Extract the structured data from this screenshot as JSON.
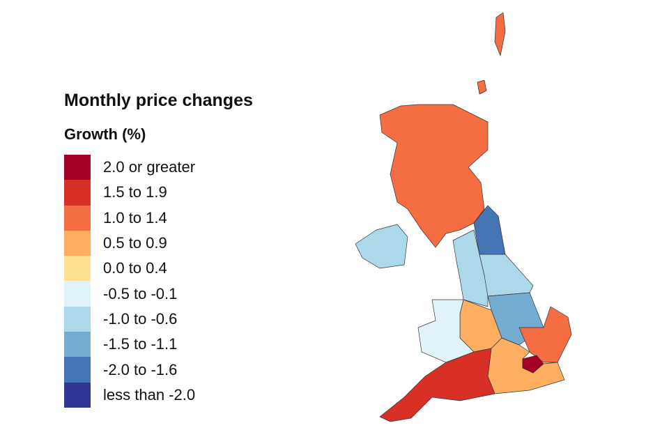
{
  "title": "Monthly price changes",
  "subtitle": "Growth (%)",
  "legend": [
    {
      "label": "2.0 or greater",
      "color": "#a50026"
    },
    {
      "label": "1.5 to 1.9",
      "color": "#d73027"
    },
    {
      "label": "1.0 to 1.4",
      "color": "#f46d43"
    },
    {
      "label": "0.5 to 0.9",
      "color": "#fdae61"
    },
    {
      "label": "0.0 to 0.4",
      "color": "#fee090"
    },
    {
      "label": "-0.5 to -0.1",
      "color": "#e0f3f8"
    },
    {
      "label": "-1.0 to -0.6",
      "color": "#abd9e9"
    },
    {
      "label": "-1.5 to -1.1",
      "color": "#74add1"
    },
    {
      "label": "-2.0 to -1.6",
      "color": "#4575b4"
    },
    {
      "label": "less than -2.0",
      "color": "#313695"
    }
  ],
  "regions": [
    {
      "id": "scotland",
      "band": 2
    },
    {
      "id": "northern-ireland",
      "band": 6
    },
    {
      "id": "north-east",
      "band": 8
    },
    {
      "id": "north-west",
      "band": 6
    },
    {
      "id": "yorkshire-and-the-humber",
      "band": 6
    },
    {
      "id": "east-midlands",
      "band": 7
    },
    {
      "id": "west-midlands",
      "band": 3
    },
    {
      "id": "wales",
      "band": 5
    },
    {
      "id": "east-of-england",
      "band": 2
    },
    {
      "id": "south-east",
      "band": 3
    },
    {
      "id": "london",
      "band": 0
    },
    {
      "id": "south-west",
      "band": 1
    }
  ]
}
